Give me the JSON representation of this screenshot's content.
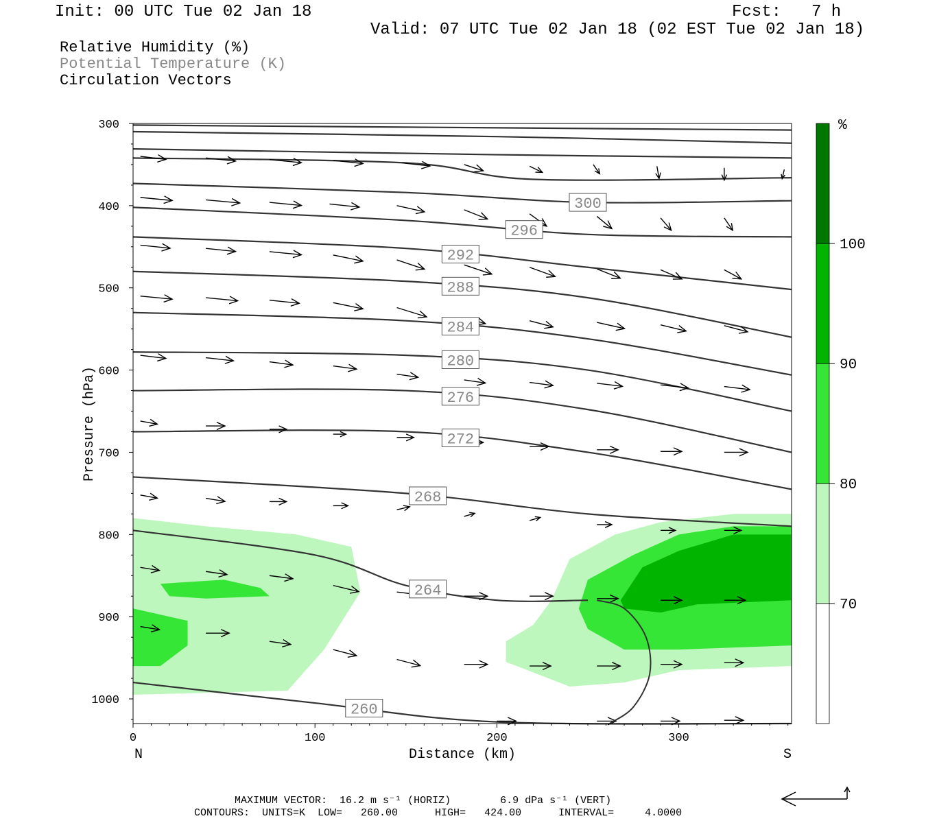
{
  "header": {
    "init": "Init: 00 UTC Tue 02 Jan 18",
    "fcst_label": "Fcst:",
    "fcst_value": "7 h",
    "valid": "Valid: 07 UTC Tue 02 Jan 18 (02 EST Tue 02 Jan 18)"
  },
  "fields": {
    "rh": "Relative Humidity (%)",
    "theta": "Potential Temperature (K)",
    "vectors": "Circulation Vectors"
  },
  "colors": {
    "shade_70": "#bdf7bd",
    "shade_80": "#36e636",
    "shade_90": "#00b400",
    "shade_100": "#007800",
    "contour": "#333333",
    "label_text": "#888888"
  },
  "chart_data": {
    "type": "cross-section",
    "xlabel": "Distance (km)",
    "ylabel": "Pressure (hPa)",
    "xlim": [
      0,
      362
    ],
    "ylim": [
      1030,
      300
    ],
    "x_ticks": [
      "0",
      "100",
      "200",
      "300"
    ],
    "y_ticks": [
      "300",
      "400",
      "500",
      "600",
      "700",
      "800",
      "900",
      "1000"
    ],
    "x_end_labels": {
      "left": "N",
      "right": "S"
    },
    "colorbar": {
      "unit": "%",
      "levels": [
        "70",
        "80",
        "90",
        "100"
      ],
      "bins": [
        {
          "from": 60,
          "to": 70,
          "color": "#ffffff"
        },
        {
          "from": 70,
          "to": 80,
          "color": "#bdf7bd"
        },
        {
          "from": 80,
          "to": 90,
          "color": "#36e636"
        },
        {
          "from": 90,
          "to": 100,
          "color": "#00b400"
        },
        {
          "from": 100,
          "to": 110,
          "color": "#007800"
        }
      ]
    },
    "theta_contours": [
      {
        "label": "",
        "points": [
          [
            0,
            302
          ],
          [
            362,
            308
          ]
        ]
      },
      {
        "label": "",
        "points": [
          [
            0,
            310
          ],
          [
            200,
            316
          ],
          [
            362,
            324
          ]
        ]
      },
      {
        "label": "",
        "points": [
          [
            0,
            331
          ],
          [
            200,
            338
          ],
          [
            362,
            342
          ]
        ]
      },
      {
        "label": "",
        "points": [
          [
            0,
            342
          ],
          [
            150,
            348
          ],
          [
            220,
            368
          ],
          [
            362,
            366
          ]
        ]
      },
      {
        "label": "300",
        "points": [
          [
            0,
            373
          ],
          [
            150,
            384
          ],
          [
            250,
            396
          ],
          [
            362,
            394
          ]
        ]
      },
      {
        "label": "296",
        "points": [
          [
            0,
            402
          ],
          [
            150,
            418
          ],
          [
            250,
            435
          ],
          [
            362,
            438
          ]
        ]
      },
      {
        "label": "292",
        "points": [
          [
            0,
            438
          ],
          [
            150,
            452
          ],
          [
            250,
            475
          ],
          [
            362,
            502
          ]
        ]
      },
      {
        "label": "288",
        "points": [
          [
            0,
            480
          ],
          [
            150,
            492
          ],
          [
            250,
            512
          ],
          [
            362,
            560
          ]
        ]
      },
      {
        "label": "284",
        "points": [
          [
            0,
            530
          ],
          [
            150,
            540
          ],
          [
            250,
            562
          ],
          [
            362,
            606
          ]
        ]
      },
      {
        "label": "280",
        "points": [
          [
            0,
            578
          ],
          [
            150,
            582
          ],
          [
            250,
            600
          ],
          [
            362,
            650
          ]
        ]
      },
      {
        "label": "276",
        "points": [
          [
            0,
            625
          ],
          [
            150,
            625
          ],
          [
            250,
            648
          ],
          [
            362,
            700
          ]
        ]
      },
      {
        "label": "272",
        "points": [
          [
            0,
            675
          ],
          [
            150,
            675
          ],
          [
            250,
            700
          ],
          [
            362,
            745
          ]
        ]
      },
      {
        "label": "268",
        "points": [
          [
            0,
            730
          ],
          [
            150,
            750
          ],
          [
            250,
            775
          ],
          [
            362,
            790
          ]
        ]
      },
      {
        "label": "264",
        "points": [
          [
            0,
            795
          ],
          [
            100,
            825
          ],
          [
            150,
            862
          ],
          [
            200,
            880
          ],
          [
            250,
            880
          ]
        ]
      },
      {
        "label": "260",
        "points": [
          [
            0,
            980
          ],
          [
            100,
            1005
          ],
          [
            200,
            1028
          ],
          [
            362,
            1030
          ]
        ]
      }
    ],
    "rh_regions": [
      {
        "level": 70,
        "points": [
          [
            0,
            780
          ],
          [
            40,
            790
          ],
          [
            90,
            800
          ],
          [
            120,
            815
          ],
          [
            125,
            870
          ],
          [
            105,
            940
          ],
          [
            85,
            990
          ],
          [
            0,
            995
          ]
        ]
      },
      {
        "level": 80,
        "points": [
          [
            15,
            860
          ],
          [
            50,
            855
          ],
          [
            70,
            865
          ],
          [
            75,
            875
          ],
          [
            40,
            878
          ],
          [
            20,
            875
          ]
        ]
      },
      {
        "level": 80,
        "points": [
          [
            0,
            890
          ],
          [
            30,
            905
          ],
          [
            30,
            935
          ],
          [
            15,
            960
          ],
          [
            0,
            960
          ]
        ]
      },
      {
        "level": 70,
        "points": [
          [
            230,
            880
          ],
          [
            240,
            830
          ],
          [
            265,
            800
          ],
          [
            290,
            785
          ],
          [
            330,
            775
          ],
          [
            362,
            775
          ],
          [
            362,
            960
          ],
          [
            300,
            965
          ],
          [
            270,
            980
          ],
          [
            240,
            985
          ],
          [
            205,
            955
          ],
          [
            205,
            930
          ],
          [
            220,
            910
          ]
        ]
      },
      {
        "level": 80,
        "points": [
          [
            245,
            890
          ],
          [
            250,
            855
          ],
          [
            275,
            825
          ],
          [
            300,
            800
          ],
          [
            330,
            790
          ],
          [
            362,
            790
          ],
          [
            362,
            935
          ],
          [
            300,
            940
          ],
          [
            270,
            940
          ],
          [
            250,
            915
          ]
        ]
      },
      {
        "level": 90,
        "points": [
          [
            268,
            880
          ],
          [
            280,
            840
          ],
          [
            300,
            820
          ],
          [
            330,
            800
          ],
          [
            362,
            800
          ],
          [
            362,
            880
          ],
          [
            310,
            885
          ],
          [
            290,
            895
          ],
          [
            270,
            890
          ]
        ]
      }
    ],
    "vectors": [
      {
        "x": 4,
        "p": 340,
        "u": 24,
        "w": 1
      },
      {
        "x": 40,
        "p": 342,
        "u": 28,
        "w": 1
      },
      {
        "x": 75,
        "p": 344,
        "u": 30,
        "w": 1
      },
      {
        "x": 110,
        "p": 345,
        "u": 28,
        "w": 1
      },
      {
        "x": 148,
        "p": 348,
        "u": 26,
        "w": 1
      },
      {
        "x": 182,
        "p": 350,
        "u": 18,
        "w": 2
      },
      {
        "x": 218,
        "p": 352,
        "u": 12,
        "w": 2
      },
      {
        "x": 253,
        "p": 350,
        "u": 6,
        "w": 3
      },
      {
        "x": 288,
        "p": 352,
        "u": 2,
        "w": 4
      },
      {
        "x": 325,
        "p": 354,
        "u": 0,
        "w": 4
      },
      {
        "x": 358,
        "p": 356,
        "u": -2,
        "w": 3
      },
      {
        "x": 4,
        "p": 390,
        "u": 30,
        "w": 1
      },
      {
        "x": 40,
        "p": 393,
        "u": 32,
        "w": 1
      },
      {
        "x": 75,
        "p": 396,
        "u": 30,
        "w": 1
      },
      {
        "x": 108,
        "p": 398,
        "u": 28,
        "w": 1
      },
      {
        "x": 145,
        "p": 400,
        "u": 26,
        "w": 2
      },
      {
        "x": 182,
        "p": 405,
        "u": 22,
        "w": 3
      },
      {
        "x": 218,
        "p": 410,
        "u": 16,
        "w": 4
      },
      {
        "x": 255,
        "p": 413,
        "u": 14,
        "w": 4
      },
      {
        "x": 290,
        "p": 415,
        "u": 10,
        "w": 4
      },
      {
        "x": 325,
        "p": 415,
        "u": 8,
        "w": 4
      },
      {
        "x": 4,
        "p": 448,
        "u": 28,
        "w": 1
      },
      {
        "x": 40,
        "p": 452,
        "u": 28,
        "w": 1
      },
      {
        "x": 75,
        "p": 456,
        "u": 30,
        "w": 1
      },
      {
        "x": 110,
        "p": 460,
        "u": 28,
        "w": 2
      },
      {
        "x": 145,
        "p": 466,
        "u": 26,
        "w": 3
      },
      {
        "x": 182,
        "p": 472,
        "u": 26,
        "w": 3
      },
      {
        "x": 218,
        "p": 475,
        "u": 24,
        "w": 3
      },
      {
        "x": 255,
        "p": 477,
        "u": 22,
        "w": 3
      },
      {
        "x": 290,
        "p": 478,
        "u": 20,
        "w": 3
      },
      {
        "x": 325,
        "p": 478,
        "u": 16,
        "w": 3
      },
      {
        "x": 4,
        "p": 510,
        "u": 30,
        "w": 1
      },
      {
        "x": 40,
        "p": 512,
        "u": 30,
        "w": 1
      },
      {
        "x": 75,
        "p": 515,
        "u": 28,
        "w": 1
      },
      {
        "x": 110,
        "p": 518,
        "u": 28,
        "w": 2
      },
      {
        "x": 145,
        "p": 524,
        "u": 28,
        "w": 3
      },
      {
        "x": 182,
        "p": 536,
        "u": 20,
        "w": 2
      },
      {
        "x": 218,
        "p": 540,
        "u": 22,
        "w": 2
      },
      {
        "x": 255,
        "p": 542,
        "u": 26,
        "w": 2
      },
      {
        "x": 290,
        "p": 545,
        "u": 24,
        "w": 2
      },
      {
        "x": 325,
        "p": 546,
        "u": 22,
        "w": 2
      },
      {
        "x": 4,
        "p": 582,
        "u": 24,
        "w": 1
      },
      {
        "x": 40,
        "p": 585,
        "u": 26,
        "w": 1
      },
      {
        "x": 75,
        "p": 590,
        "u": 22,
        "w": 1
      },
      {
        "x": 110,
        "p": 595,
        "u": 22,
        "w": 1
      },
      {
        "x": 145,
        "p": 605,
        "u": 20,
        "w": 1
      },
      {
        "x": 182,
        "p": 612,
        "u": 20,
        "w": 1
      },
      {
        "x": 218,
        "p": 615,
        "u": 22,
        "w": 1
      },
      {
        "x": 255,
        "p": 616,
        "u": 24,
        "w": 1
      },
      {
        "x": 290,
        "p": 618,
        "u": 26,
        "w": 1
      },
      {
        "x": 325,
        "p": 620,
        "u": 24,
        "w": 1
      },
      {
        "x": 4,
        "p": 662,
        "u": 16,
        "w": 1
      },
      {
        "x": 40,
        "p": 668,
        "u": 18,
        "w": 0
      },
      {
        "x": 75,
        "p": 672,
        "u": 16,
        "w": 0
      },
      {
        "x": 110,
        "p": 678,
        "u": 12,
        "w": 0
      },
      {
        "x": 145,
        "p": 682,
        "u": 16,
        "w": 0
      },
      {
        "x": 182,
        "p": 688,
        "u": 18,
        "w": 0
      },
      {
        "x": 218,
        "p": 693,
        "u": 18,
        "w": 0
      },
      {
        "x": 255,
        "p": 697,
        "u": 20,
        "w": 0
      },
      {
        "x": 290,
        "p": 699,
        "u": 20,
        "w": 0
      },
      {
        "x": 325,
        "p": 700,
        "u": 22,
        "w": 0
      },
      {
        "x": 4,
        "p": 752,
        "u": 16,
        "w": 1
      },
      {
        "x": 40,
        "p": 756,
        "u": 18,
        "w": 1
      },
      {
        "x": 75,
        "p": 760,
        "u": 16,
        "w": 0
      },
      {
        "x": 110,
        "p": 765,
        "u": 14,
        "w": 0
      },
      {
        "x": 145,
        "p": 770,
        "u": 12,
        "w": -1
      },
      {
        "x": 182,
        "p": 778,
        "u": 10,
        "w": -1
      },
      {
        "x": 218,
        "p": 783,
        "u": 10,
        "w": -1
      },
      {
        "x": 255,
        "p": 788,
        "u": 14,
        "w": 0
      },
      {
        "x": 290,
        "p": 795,
        "u": 14,
        "w": 0
      },
      {
        "x": 325,
        "p": 795,
        "u": 16,
        "w": 0
      },
      {
        "x": 4,
        "p": 840,
        "u": 18,
        "w": 1
      },
      {
        "x": 40,
        "p": 845,
        "u": 20,
        "w": 1
      },
      {
        "x": 75,
        "p": 850,
        "u": 22,
        "w": 1
      },
      {
        "x": 110,
        "p": 862,
        "u": 24,
        "w": 2
      },
      {
        "x": 145,
        "p": 870,
        "u": 24,
        "w": 1
      },
      {
        "x": 182,
        "p": 875,
        "u": 22,
        "w": 0
      },
      {
        "x": 218,
        "p": 875,
        "u": 22,
        "w": 0
      },
      {
        "x": 255,
        "p": 878,
        "u": 20,
        "w": 0
      },
      {
        "x": 290,
        "p": 880,
        "u": 20,
        "w": 0
      },
      {
        "x": 325,
        "p": 880,
        "u": 20,
        "w": 0
      },
      {
        "x": 4,
        "p": 912,
        "u": 18,
        "w": 1
      },
      {
        "x": 40,
        "p": 920,
        "u": 22,
        "w": 0
      },
      {
        "x": 75,
        "p": 930,
        "u": 20,
        "w": 1
      },
      {
        "x": 110,
        "p": 940,
        "u": 22,
        "w": 2
      },
      {
        "x": 145,
        "p": 952,
        "u": 22,
        "w": 2
      },
      {
        "x": 182,
        "p": 958,
        "u": 22,
        "w": 0
      },
      {
        "x": 218,
        "p": 960,
        "u": 20,
        "w": 0
      },
      {
        "x": 255,
        "p": 960,
        "u": 22,
        "w": 0
      },
      {
        "x": 290,
        "p": 958,
        "u": 20,
        "w": 0
      },
      {
        "x": 325,
        "p": 956,
        "u": 18,
        "w": 0
      },
      {
        "x": 200,
        "p": 1027,
        "u": 18,
        "w": 0
      },
      {
        "x": 255,
        "p": 1027,
        "u": 18,
        "w": 0
      },
      {
        "x": 290,
        "p": 1027,
        "u": 18,
        "w": 0
      },
      {
        "x": 325,
        "p": 1026,
        "u": 18,
        "w": 0
      }
    ],
    "vertical_line": {
      "points": [
        [
          262,
          1030
        ],
        [
          275,
          1010
        ],
        [
          284,
          970
        ],
        [
          282,
          925
        ],
        [
          270,
          890
        ],
        [
          255,
          880
        ]
      ]
    }
  },
  "footer": {
    "line1": "MAXIMUM VECTOR:  16.2 m s⁻¹ (HORIZ)        6.9 dPa s⁻¹ (VERT)",
    "line2": "CONTOURS:  UNITS=K  LOW=   260.00      HIGH=   424.00      INTERVAL=     4.0000"
  },
  "reference_vector_icon": "reference-vector-icon"
}
